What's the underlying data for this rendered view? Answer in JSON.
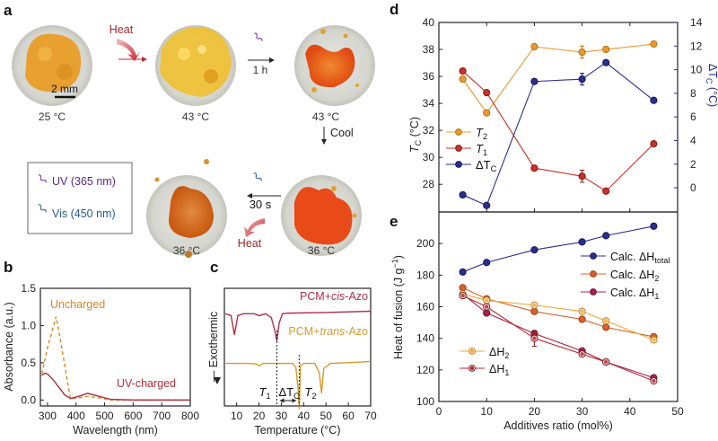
{
  "panel_labels": {
    "a": "a",
    "b": "b",
    "c": "c",
    "d": "d",
    "e": "e"
  },
  "panel_a": {
    "temps": [
      "25 °C",
      "43 °C",
      "43 °C",
      "36 °C",
      "36 °C"
    ],
    "scale_bar": "2 mm",
    "heat_label_1": "Heat",
    "time_1h": "1 h",
    "cool_label": "Cool",
    "time_30s": "30 s",
    "heat_label_2": "Heat",
    "legend_uv": "UV (365 nm)",
    "legend_vis": "Vis (450 nm)",
    "colors": {
      "uv": "#8a3fb0",
      "vis": "#3a6fa8",
      "heat": "#c0272d"
    }
  },
  "chart_data": [
    {
      "panel": "b",
      "type": "line",
      "xlabel": "Wavelength (nm)",
      "ylabel": "Absorbance (a.u.)",
      "xlim": [
        275,
        800
      ],
      "ylim": [
        -0.08,
        1.5
      ],
      "xticks": [
        300,
        400,
        500,
        600,
        700,
        800
      ],
      "xtick_labels": [
        "300",
        "400",
        "500",
        "600",
        "700",
        "800"
      ],
      "yticks": [
        0,
        0.5,
        1.0,
        1.5
      ],
      "ytick_labels": [
        "0.0",
        "0.5",
        "1.0",
        "1.5"
      ],
      "series": [
        {
          "name": "Uncharged",
          "color": "#d4892a",
          "dashed": true,
          "x": [
            280,
            300,
            330,
            350,
            380,
            410,
            440,
            480,
            520,
            600,
            800
          ],
          "y": [
            0.35,
            0.7,
            1.12,
            0.7,
            0.02,
            0.03,
            0.05,
            0.03,
            0.0,
            0.0,
            0.0
          ]
        },
        {
          "name": "UV-charged",
          "color": "#b0303c",
          "dashed": false,
          "x": [
            280,
            290,
            300,
            320,
            340,
            360,
            380,
            410,
            440,
            480,
            520,
            600,
            800
          ],
          "y": [
            0.33,
            0.36,
            0.35,
            0.27,
            0.17,
            0.07,
            0.02,
            0.05,
            0.09,
            0.05,
            0.01,
            0.0,
            0.0
          ]
        }
      ]
    },
    {
      "panel": "c",
      "type": "line",
      "xlabel": "Temperature (°C)",
      "ylabel": "Exothermic",
      "xlim": [
        4.5,
        70
      ],
      "ylim": [
        -14.5,
        4
      ],
      "xticks": [
        10,
        20,
        30,
        40,
        50,
        60,
        70
      ],
      "xtick_labels": [
        "10",
        "20",
        "30",
        "40",
        "50",
        "60",
        "70"
      ],
      "annotations": {
        "t1": "T",
        "t1_sub": "1",
        "dtc": "ΔT",
        "dtc_sub": "C",
        "t2": "T",
        "t2_sub": "2",
        "T1_x": 28,
        "T2_x": 38
      },
      "series": [
        {
          "name": "PCM+cis-Azo",
          "name_pre": "PCM+",
          "name_it": "cis",
          "name_post": "-Azo",
          "color": "#b0304a",
          "offset": 0,
          "x": [
            5,
            7.5,
            9,
            10.5,
            13,
            18,
            20,
            23,
            25.5,
            27,
            28,
            29,
            30.5,
            33,
            50,
            70
          ],
          "y": [
            0,
            -0.3,
            -3.3,
            -0.3,
            0,
            0,
            -0.3,
            0,
            -0.6,
            -2.5,
            -4.3,
            -1.5,
            0,
            0.1,
            0.2,
            0.4
          ]
        },
        {
          "name": "PCM+trans-Azo",
          "name_pre": "PCM+",
          "name_it": "trans",
          "name_post": "-Azo",
          "color": "#d89a2a",
          "offset": -7.8,
          "x": [
            5,
            15,
            19,
            20,
            22,
            30,
            35,
            36.5,
            37.5,
            38,
            38.6,
            40,
            45,
            47,
            48,
            49,
            52,
            60,
            70
          ],
          "y": [
            0,
            0,
            -0.1,
            -0.4,
            0,
            0,
            0,
            -0.6,
            -4,
            -7.2,
            -0.3,
            0,
            0,
            -1.5,
            -4.7,
            -0.8,
            0,
            0.1,
            0.3
          ]
        }
      ]
    },
    {
      "panel": "d",
      "type": "line",
      "xlabel": "",
      "ylabel": "T",
      "ylabel_sub": "C",
      "ylabel_unit": " (°C)",
      "y2label": "ΔT",
      "y2label_sub": "C",
      "y2label_unit": " (°C)",
      "xlim": [
        0,
        50
      ],
      "ylim": [
        25.95,
        40
      ],
      "y2lim": [
        -2.05,
        14
      ],
      "xticks": [
        0,
        10,
        20,
        30,
        40,
        50
      ],
      "yticks": [
        28,
        30,
        32,
        34,
        36,
        38,
        40
      ],
      "ytick_labels": [
        "28",
        "30",
        "32",
        "34",
        "36",
        "38",
        "40"
      ],
      "y2ticks": [
        0,
        2,
        4,
        6,
        8,
        10,
        12,
        14
      ],
      "y2tick_labels": [
        "0",
        "2",
        "4",
        "6",
        "8",
        "10",
        "12",
        "14"
      ],
      "series": [
        {
          "name": "T2",
          "label": "T",
          "sub": "2",
          "axis": "left",
          "color": "#e89a2c",
          "stroke": "#b87018",
          "x": [
            5,
            10,
            20,
            30,
            35,
            45
          ],
          "y": [
            35.8,
            33.3,
            38.2,
            37.8,
            38.0,
            38.4
          ],
          "err": [
            0.15,
            0.1,
            0.1,
            0.45,
            0.1,
            0.1
          ]
        },
        {
          "name": "T1",
          "label": "T",
          "sub": "1",
          "axis": "left",
          "color": "#c8302a",
          "stroke": "#8a1a18",
          "x": [
            5,
            10,
            20,
            30,
            35,
            45
          ],
          "y": [
            36.4,
            34.8,
            29.2,
            28.6,
            27.5,
            31.0
          ],
          "err": [
            0.2,
            0.1,
            0.1,
            0.45,
            0.15,
            0.3
          ]
        },
        {
          "name": "ΔTC",
          "label": "ΔT",
          "sub": "C",
          "axis": "right",
          "color": "#2b2f8a",
          "stroke": "#151860",
          "x": [
            5,
            10,
            20,
            30,
            35,
            45
          ],
          "y": [
            -0.6,
            -1.5,
            9.0,
            9.2,
            10.6,
            7.4
          ],
          "err": [
            0.1,
            0.1,
            0.1,
            0.5,
            0.1,
            0.1
          ]
        }
      ]
    },
    {
      "panel": "e",
      "type": "line",
      "xlabel": "Additives ratio (mol%)",
      "ylabel": "Heat of fusion (J g",
      "ylabel_sup": "−1",
      "ylabel_end": ")",
      "xlim": [
        0,
        50
      ],
      "ylim": [
        100,
        220
      ],
      "xticks": [
        0,
        10,
        20,
        30,
        40,
        50
      ],
      "xtick_labels": [
        "0",
        "10",
        "20",
        "30",
        "40",
        "50"
      ],
      "yticks": [
        100,
        120,
        140,
        160,
        180,
        200
      ],
      "ytick_labels": [
        "100",
        "120",
        "140",
        "160",
        "180",
        "200"
      ],
      "series": [
        {
          "name": "Calc. ΔHtotal",
          "label": "Calc. ΔH",
          "sub": "total",
          "group": "calc",
          "color": "#2b2f8a",
          "stroke": "#151860",
          "x": [
            5,
            10,
            20,
            30,
            35,
            45
          ],
          "y": [
            182,
            188,
            196,
            201,
            205,
            211
          ]
        },
        {
          "name": "Calc. ΔH2",
          "label": "Calc. ΔH",
          "sub": "2",
          "group": "calc",
          "color": "#d9602a",
          "stroke": "#a0401a",
          "x": [
            5,
            10,
            20,
            30,
            35,
            45
          ],
          "y": [
            172,
            165,
            157,
            152,
            147,
            141
          ]
        },
        {
          "name": "Calc. ΔH1",
          "label": "Calc. ΔH",
          "sub": "1",
          "group": "calc",
          "color": "#a8204a",
          "stroke": "#701030",
          "x": [
            5,
            10,
            20,
            30,
            35,
            45
          ],
          "y": [
            168,
            156,
            143,
            132,
            125,
            115
          ]
        },
        {
          "name": "ΔH2",
          "label": "ΔH",
          "sub": "2",
          "group": "measured",
          "color": "#f0a830",
          "stroke": "#c07a18",
          "open": true,
          "x": [
            5,
            10,
            20,
            30,
            35,
            45
          ],
          "y": [
            168,
            164,
            161,
            157,
            151,
            139
          ],
          "err": [
            1,
            1,
            1,
            1,
            1.5,
            1
          ]
        },
        {
          "name": "ΔH1",
          "label": "ΔH",
          "sub": "1",
          "group": "measured",
          "color": "#b02a30",
          "stroke": "#801818",
          "open": true,
          "x": [
            5,
            10,
            20,
            30,
            35,
            45
          ],
          "y": [
            167,
            160,
            140,
            130,
            125,
            113
          ],
          "err": [
            1,
            1,
            5,
            1,
            1,
            1
          ]
        }
      ]
    }
  ]
}
